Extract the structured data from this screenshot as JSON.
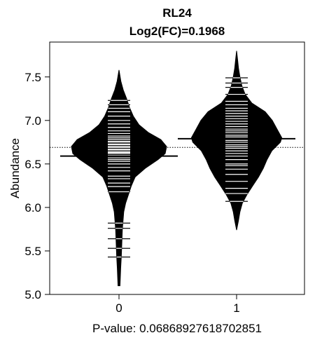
{
  "chart_data": {
    "type": "beanplot",
    "title": "RL24",
    "subtitle": "Log2(FC)=0.1968",
    "xlabel": "P-value: 0.0686892761870285​1",
    "ylabel": "Abundance",
    "ylim": [
      5.0,
      7.8
    ],
    "yticks": [
      "5.0",
      "5.5",
      "6.0",
      "6.5",
      "7.0",
      "7.5"
    ],
    "categories": [
      "0",
      "1"
    ],
    "overall_mean": 6.69,
    "groups": [
      {
        "label": "0",
        "mean": 6.59,
        "min": 5.1,
        "max": 7.58,
        "density": [
          [
            5.1,
            0.02
          ],
          [
            5.3,
            0.035
          ],
          [
            5.45,
            0.05
          ],
          [
            5.6,
            0.06
          ],
          [
            5.75,
            0.07
          ],
          [
            5.85,
            0.085
          ],
          [
            5.95,
            0.1
          ],
          [
            6.05,
            0.14
          ],
          [
            6.15,
            0.2
          ],
          [
            6.25,
            0.26
          ],
          [
            6.35,
            0.34
          ],
          [
            6.45,
            0.55
          ],
          [
            6.55,
            0.82
          ],
          [
            6.62,
            0.97
          ],
          [
            6.7,
            1.0
          ],
          [
            6.78,
            0.88
          ],
          [
            6.86,
            0.62
          ],
          [
            6.95,
            0.42
          ],
          [
            7.05,
            0.3
          ],
          [
            7.15,
            0.22
          ],
          [
            7.25,
            0.16
          ],
          [
            7.35,
            0.09
          ],
          [
            7.45,
            0.04
          ],
          [
            7.58,
            0.0
          ]
        ],
        "points": [
          5.43,
          5.53,
          5.64,
          5.76,
          5.82,
          6.18,
          6.24,
          6.28,
          6.33,
          6.36,
          6.42,
          6.46,
          6.5,
          6.53,
          6.55,
          6.57,
          6.59,
          6.6,
          6.62,
          6.63,
          6.64,
          6.66,
          6.67,
          6.69,
          6.7,
          6.72,
          6.73,
          6.75,
          6.76,
          6.78,
          6.8,
          6.82,
          6.85,
          6.88,
          6.92,
          6.96,
          7.0,
          7.05,
          7.1,
          7.14,
          7.18,
          7.23
        ]
      },
      {
        "label": "1",
        "mean": 6.79,
        "min": 5.74,
        "max": 7.8,
        "density": [
          [
            5.74,
            0.0
          ],
          [
            5.85,
            0.04
          ],
          [
            5.95,
            0.07
          ],
          [
            6.05,
            0.12
          ],
          [
            6.15,
            0.22
          ],
          [
            6.25,
            0.34
          ],
          [
            6.35,
            0.46
          ],
          [
            6.45,
            0.56
          ],
          [
            6.55,
            0.64
          ],
          [
            6.65,
            0.74
          ],
          [
            6.75,
            0.92
          ],
          [
            6.8,
            0.95
          ],
          [
            6.9,
            0.85
          ],
          [
            7.0,
            0.75
          ],
          [
            7.1,
            0.6
          ],
          [
            7.2,
            0.32
          ],
          [
            7.3,
            0.18
          ],
          [
            7.4,
            0.11
          ],
          [
            7.5,
            0.07
          ],
          [
            7.6,
            0.04
          ],
          [
            7.7,
            0.02
          ],
          [
            7.8,
            0.0
          ]
        ],
        "points": [
          6.07,
          6.16,
          6.22,
          6.3,
          6.38,
          6.44,
          6.48,
          6.5,
          6.55,
          6.59,
          6.62,
          6.65,
          6.68,
          6.7,
          6.72,
          6.75,
          6.77,
          6.79,
          6.81,
          6.83,
          6.86,
          6.88,
          6.9,
          6.93,
          6.96,
          6.99,
          7.02,
          7.05,
          7.08,
          7.11,
          7.14,
          7.18,
          7.22,
          7.3,
          7.38,
          7.43,
          7.49
        ]
      }
    ]
  }
}
